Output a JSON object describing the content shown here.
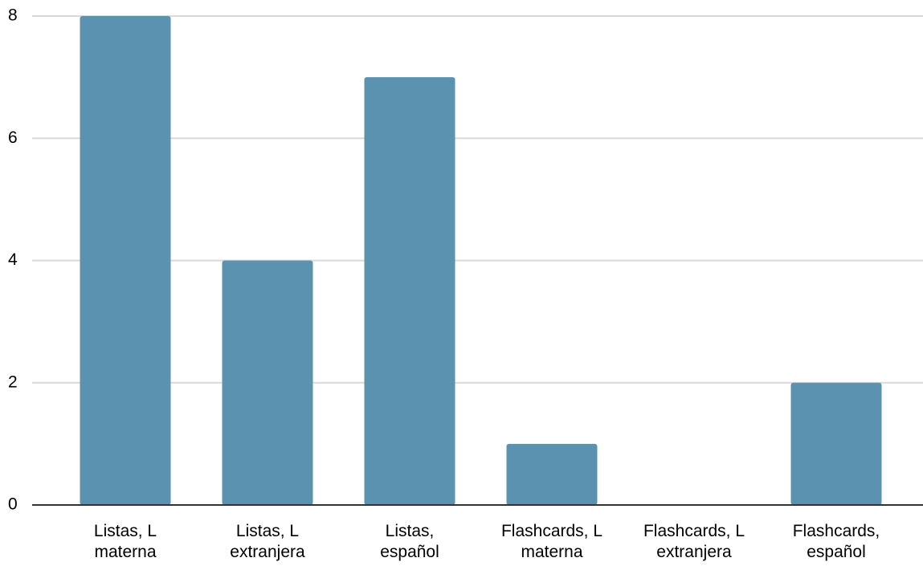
{
  "chart_data": {
    "type": "bar",
    "title": "",
    "xlabel": "",
    "ylabel": "",
    "categories": [
      [
        "Listas, L",
        "materna"
      ],
      [
        "Listas, L",
        "extranjera"
      ],
      [
        "Listas,",
        "español"
      ],
      [
        "Flashcards, L",
        "materna"
      ],
      [
        "Flashcards, L",
        "extranjera"
      ],
      [
        "Flashcards,",
        "español"
      ]
    ],
    "values": [
      8,
      4,
      7,
      1,
      0,
      2
    ],
    "ylim": [
      0,
      8
    ],
    "yticks": [
      0,
      2,
      4,
      6,
      8
    ],
    "grid": true,
    "legend": "none",
    "colors": {
      "bar": "#5b92b0",
      "grid": "#d9d9d9",
      "axis": "#333333"
    }
  }
}
